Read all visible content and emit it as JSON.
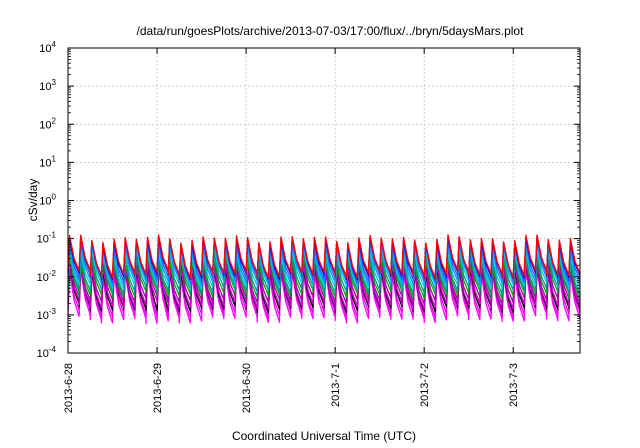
{
  "chart_data": {
    "type": "line",
    "title": "/data/run/goesPlots/archive/2013-07-03/17:00/flux/../bryn/5daysMars.plot",
    "xlabel": "Coordinated Universal Time (UTC)",
    "ylabel": "cSv/day",
    "y_scale": "log",
    "ylim": [
      0.0001,
      10000
    ],
    "y_ticks": [
      {
        "base": "10",
        "exp": "-4"
      },
      {
        "base": "10",
        "exp": "-3"
      },
      {
        "base": "10",
        "exp": "-2"
      },
      {
        "base": "10",
        "exp": "-1"
      },
      {
        "base": "10",
        "exp": "0"
      },
      {
        "base": "10",
        "exp": "1"
      },
      {
        "base": "10",
        "exp": "2"
      },
      {
        "base": "10",
        "exp": "3"
      },
      {
        "base": "10",
        "exp": "4"
      }
    ],
    "x_range_days": [
      "2013-06-28",
      "2013-07-03 18:00"
    ],
    "x_ticks": [
      "2013-6-28",
      "2013-6-29",
      "2013-6-30",
      "2013-7-1",
      "2013-7-2",
      "2013-7-3"
    ],
    "grid": true,
    "legend": "none",
    "series_description": "about 12 overlapping sawtooth flux traces with a period of about 3 hours; each cycle spikes sharply then decays; the magenta and purple bands sit lowest, red and blue highest",
    "sawtooth_period_hours": 3,
    "series": [
      {
        "color": "#ff0000",
        "peak": 0.1,
        "trough": 0.012
      },
      {
        "color": "#0000ff",
        "peak": 0.09,
        "trough": 0.011
      },
      {
        "color": "#2266ff",
        "peak": 0.075,
        "trough": 0.009
      },
      {
        "color": "#0099ff",
        "peak": 0.06,
        "trough": 0.0075
      },
      {
        "color": "#00cccc",
        "peak": 0.045,
        "trough": 0.006
      },
      {
        "color": "#009999",
        "peak": 0.035,
        "trough": 0.0045
      },
      {
        "color": "#00aa00",
        "peak": 0.028,
        "trough": 0.0035
      },
      {
        "color": "#aa00aa",
        "peak": 0.022,
        "trough": 0.0025
      },
      {
        "color": "#cc00cc",
        "peak": 0.018,
        "trough": 0.0018
      },
      {
        "color": "#000000",
        "peak": 0.016,
        "trough": 0.0015
      },
      {
        "color": "#ee00ee",
        "peak": 0.014,
        "trough": 0.0011
      },
      {
        "color": "#ff00ff",
        "peak": 0.012,
        "trough": 0.0008
      }
    ]
  }
}
